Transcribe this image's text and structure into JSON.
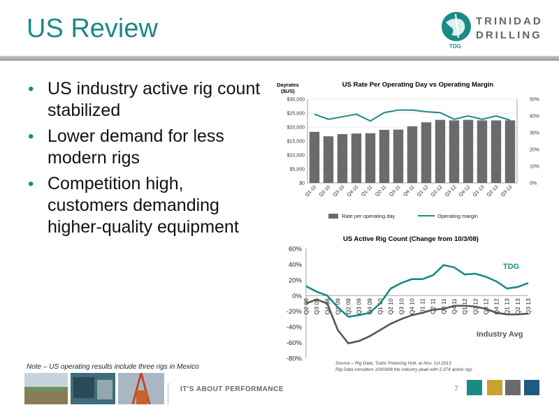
{
  "slide": {
    "title": "US Review",
    "bullets": [
      "US industry active rig count stabilized",
      "Lower demand for less modern rigs",
      "Competition high, customers demanding higher-quality equipment"
    ],
    "note": "Note – US operating results include three rigs in Mexico",
    "source_line1": "Source – Rig Data, Tudor Pickering Holt, at Nov. 1st 2013",
    "source_line2": "Rig Data considers 10/03/08 the industry peak with 2,374 active rigs",
    "tagline": "IT'S ABOUT PERFORMANCE",
    "page_number": "7"
  },
  "logo": {
    "line1": "TRINIDAD",
    "line2": "DRILLING",
    "badge": "TDG"
  },
  "colors": {
    "teal": "#1a8a84",
    "bar_gray": "#6b6b6b",
    "line_gray": "#555555",
    "swatches": [
      "#1a8a84",
      "#c8a22c",
      "#6b6b6b",
      "#1f5a82"
    ]
  },
  "chart_data": [
    {
      "type": "bar",
      "title": "US Rate Per Operating Day vs Operating Margin",
      "ylabel": "Dayrates ($US)",
      "categories": [
        "Q1-10",
        "Q2-10",
        "Q3-10",
        "Q4-10",
        "Q1-11",
        "Q2-11",
        "Q3-11",
        "Q4-11",
        "Q1-12",
        "Q2-12",
        "Q3-12",
        "Q4-12",
        "Q1-13",
        "Q2-13",
        "Q3-13"
      ],
      "y_ticks": [
        "$0",
        "$5,000",
        "$10,000",
        "$15,000",
        "$20,000",
        "$25,000",
        "$30,000"
      ],
      "y2_ticks": [
        "0%",
        "10%",
        "20%",
        "30%",
        "40%",
        "50%"
      ],
      "ylim": [
        0,
        30000
      ],
      "y2lim": [
        0,
        50
      ],
      "series": [
        {
          "name": "Rate per operating day",
          "type": "bar",
          "values": [
            18300,
            16700,
            17500,
            17700,
            17800,
            19000,
            19100,
            20300,
            21700,
            22600,
            22400,
            22600,
            22400,
            22400,
            22400
          ]
        },
        {
          "name": "Operating margin",
          "type": "line",
          "axis": "right",
          "values": [
            41,
            38,
            39.5,
            41,
            37,
            42,
            43.5,
            43.5,
            42.5,
            42,
            38,
            40,
            38,
            40,
            37.5
          ]
        }
      ],
      "legend_position": "bottom"
    },
    {
      "type": "line",
      "title": "US Active Rig Count (Change from 10/3/08)",
      "categories": [
        "Q2 08",
        "Q3 08",
        "Q4 08",
        "Q1 09",
        "Q2 09",
        "Q3 09",
        "Q4 09",
        "Q1 10",
        "Q2 10",
        "Q3 10",
        "Q4 10",
        "Q1 11",
        "Q2 11",
        "Q3 11",
        "Q4 11",
        "Q1 12",
        "Q2 12",
        "Q3 12",
        "Q4 12",
        "Q1 13",
        "Q2 13",
        "Q3 13"
      ],
      "y_ticks": [
        "60%",
        "40%",
        "20%",
        "0%",
        "-20%",
        "-40%",
        "-60%",
        "-80%"
      ],
      "ylim": [
        -80,
        60
      ],
      "series": [
        {
          "name": "TDG",
          "values": [
            12,
            5,
            0,
            -15,
            -27,
            -25,
            -22,
            -10,
            9,
            16,
            21,
            21,
            26,
            39,
            36,
            27,
            28,
            24,
            18,
            9,
            11,
            16
          ]
        },
        {
          "name": "Industry Avg",
          "values": [
            -10,
            -5,
            -10,
            -44,
            -61,
            -58,
            -52,
            -44,
            -36,
            -30,
            -25,
            -22,
            -18,
            -17,
            -13,
            -13,
            -14,
            -17,
            -22,
            -24,
            -24,
            -23
          ]
        }
      ],
      "series_labels": {
        "tdg": "TDG",
        "industry": "Industry Avg"
      }
    }
  ]
}
